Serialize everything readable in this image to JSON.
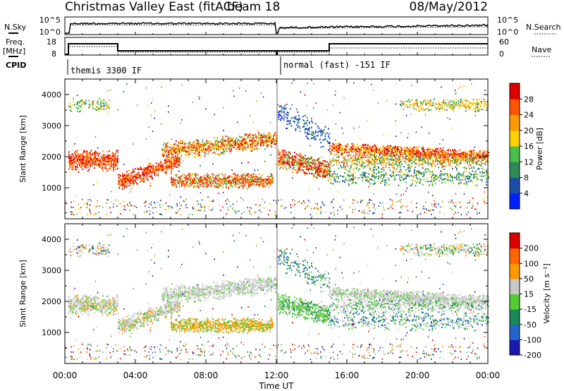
{
  "header": {
    "title": "Christmas Valley East (fitACF)",
    "beam": "beam 18",
    "date": "08/May/2012"
  },
  "panels": {
    "nsky": {
      "label": "N.Sky",
      "right_label": "N.Search",
      "left_ticks": [
        "10^5",
        "10^0"
      ],
      "right_ticks": [
        "10^5",
        "10^0"
      ]
    },
    "freq": {
      "label_line1": "Freq.",
      "label_line2": "[MHz]",
      "right_label": "Nave",
      "left_ticks": [
        "18",
        "8"
      ],
      "right_ticks": [
        "60",
        "0"
      ]
    },
    "cpid": {
      "label": "CPID",
      "program_1": "themis 3300 IF",
      "program_2": "normal (fast) -151 IF"
    }
  },
  "chart_data": [
    {
      "type": "heatmap",
      "name": "power",
      "ylabel": "Slant Range [km]",
      "yticks": [
        "1000",
        "2000",
        "3000",
        "4000"
      ],
      "colorbar_label": "Power [dB]",
      "colorbar_ticks": [
        "28",
        "24",
        "20",
        "16",
        "12",
        "8",
        "4"
      ],
      "colors": [
        "#0020ff",
        "#1c4fa6",
        "#2e8b57",
        "#4bbf4b",
        "#ffd000",
        "#ff9a00",
        "#ff5500",
        "#e00000"
      ]
    },
    {
      "type": "heatmap",
      "name": "velocity",
      "ylabel": "Slant Range [km]",
      "yticks": [
        "1000",
        "2000",
        "3000",
        "4000"
      ],
      "colorbar_label": "Velocity [m s⁻¹]",
      "colorbar_ticks": [
        "200",
        "100",
        "50",
        "15",
        "-15",
        "-50",
        "-100",
        "-200"
      ],
      "colors": [
        "#1a1ab0",
        "#2266cc",
        "#1a8a5a",
        "#55cc33",
        "#c8c8c8",
        "#ff9900",
        "#ff6600",
        "#dd0000"
      ]
    }
  ],
  "xaxis": {
    "label": "Time UT",
    "ticks": [
      "00:00",
      "04:00",
      "08:00",
      "12:00",
      "16:00",
      "20:00",
      "00:00"
    ]
  }
}
